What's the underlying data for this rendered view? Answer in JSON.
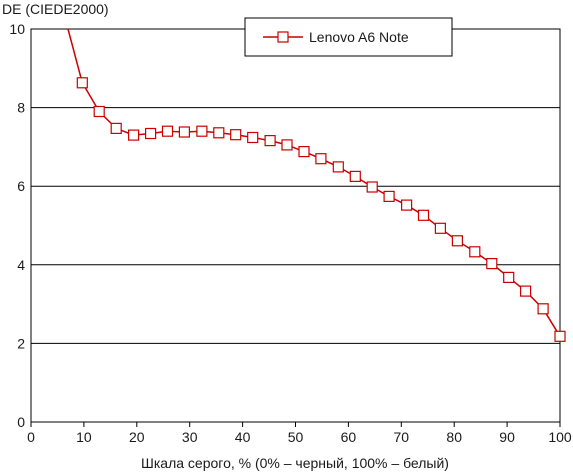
{
  "chart_data": {
    "type": "line",
    "title": "",
    "ylabel": "DE (CIEDE2000)",
    "xlabel": "Шкала серого, % (0% – черный, 100% – белый)",
    "xlim": [
      0,
      100
    ],
    "ylim": [
      0,
      10
    ],
    "x_ticks": [
      "0",
      "10",
      "20",
      "30",
      "40",
      "50",
      "60",
      "70",
      "80",
      "90",
      "100"
    ],
    "y_ticks": [
      "0",
      "2",
      "4",
      "6",
      "8",
      "10"
    ],
    "grid": "horizontal",
    "legend_position": "top-center",
    "series": [
      {
        "name": "Lenovo A6 Note",
        "color": "#cc0000",
        "marker": "open-square",
        "line_start": [
          7.0,
          10.2
        ],
        "x": [
          9.7,
          12.9,
          16.1,
          19.4,
          22.6,
          25.8,
          29.0,
          32.3,
          35.5,
          38.7,
          41.9,
          45.2,
          48.4,
          51.6,
          54.8,
          58.1,
          61.3,
          64.5,
          67.7,
          71.0,
          74.2,
          77.4,
          80.6,
          83.9,
          87.1,
          90.3,
          93.5,
          96.8,
          100.0
        ],
        "y": [
          8.63,
          7.9,
          7.47,
          7.3,
          7.34,
          7.4,
          7.38,
          7.4,
          7.36,
          7.31,
          7.24,
          7.16,
          7.05,
          6.88,
          6.7,
          6.49,
          6.25,
          5.98,
          5.74,
          5.52,
          5.26,
          4.93,
          4.61,
          4.33,
          4.03,
          3.68,
          3.33,
          2.88,
          2.18
        ]
      }
    ]
  }
}
